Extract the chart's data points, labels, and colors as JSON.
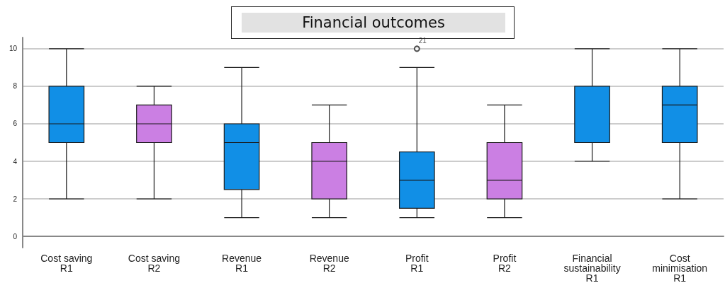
{
  "chart_data": {
    "type": "box",
    "title": "Financial outcomes",
    "categories": [
      "Cost saving\nR1",
      "Cost saving\nR2",
      "Revenue\nR1",
      "Revenue\nR2",
      "Profit\nR1",
      "Profit\nR2",
      "Financial\nsustainability\nR1",
      "Cost\nminimisation\nR1"
    ],
    "boxes": [
      {
        "low": 2,
        "q1": 5,
        "median": 6,
        "q3": 8,
        "high": 10
      },
      {
        "low": 2,
        "q1": 5,
        "median": 6,
        "q3": 7,
        "high": 8
      },
      {
        "low": 1,
        "q1": 2.5,
        "median": 5,
        "q3": 6,
        "high": 9
      },
      {
        "low": 1,
        "q1": 2,
        "median": 4,
        "q3": 5,
        "high": 7
      },
      {
        "low": 1,
        "q1": 1.5,
        "median": 3,
        "q3": 4.5,
        "high": 9,
        "outliers": [
          10
        ]
      },
      {
        "low": 1,
        "q1": 2,
        "median": 3,
        "q3": 5,
        "high": 7
      },
      {
        "low": 4,
        "q1": 5,
        "median": 8,
        "q3": 8,
        "high": 10
      },
      {
        "low": 2,
        "q1": 5,
        "median": 7,
        "q3": 8,
        "high": 10
      }
    ],
    "colors": [
      "#118fe6",
      "#cb7fe3",
      "#118fe6",
      "#cb7fe3",
      "#118fe6",
      "#cb7fe3",
      "#118fe6",
      "#118fe6"
    ],
    "annotations": [
      "21"
    ],
    "ylim": [
      -0.6,
      10.6
    ],
    "yticks": [
      0,
      2,
      4,
      6,
      8,
      10
    ],
    "grid": "y"
  }
}
